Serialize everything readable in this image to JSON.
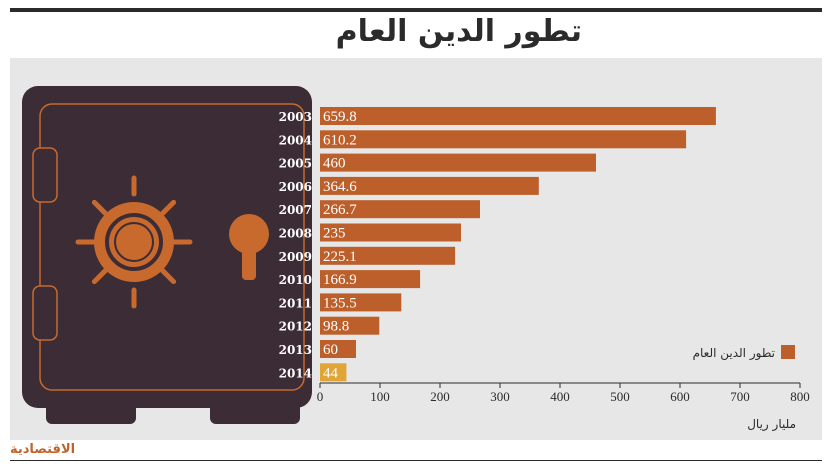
{
  "title": "تطور الدين العام",
  "brand": "الاقتصادية",
  "colors": {
    "bar": "#bc5f2a",
    "bar_highlight": "#e0a437",
    "safe_body": "#3b2c36",
    "safe_accent": "#c86a2e",
    "panel": "#e7e7e8",
    "text": "#2b2b2b"
  },
  "chart_data": {
    "type": "bar",
    "orientation": "horizontal",
    "title": "تطور الدين العام",
    "categories": [
      "2003",
      "2004",
      "2005",
      "2006",
      "2007",
      "2008",
      "2009",
      "2010",
      "2011",
      "2012",
      "2013",
      "2014"
    ],
    "series": [
      {
        "name": "تطور الدين العام",
        "values": [
          659.8,
          610.2,
          460,
          364.6,
          266.7,
          235,
          225.1,
          166.9,
          135.5,
          98.8,
          60,
          44
        ],
        "value_labels": [
          "659.8",
          "610.2",
          "460",
          "364.6",
          "266.7",
          "235",
          "225.1",
          "166.9",
          "135.5",
          "98.8",
          "60",
          "44"
        ]
      }
    ],
    "highlight_category": "2014",
    "xlim": [
      0,
      800
    ],
    "xticks": [
      "0",
      "100",
      "200",
      "300",
      "400",
      "500",
      "600",
      "700",
      "800"
    ],
    "xlabel": "مليار ريال",
    "ylabel": "",
    "grid": false,
    "legend": "right"
  }
}
